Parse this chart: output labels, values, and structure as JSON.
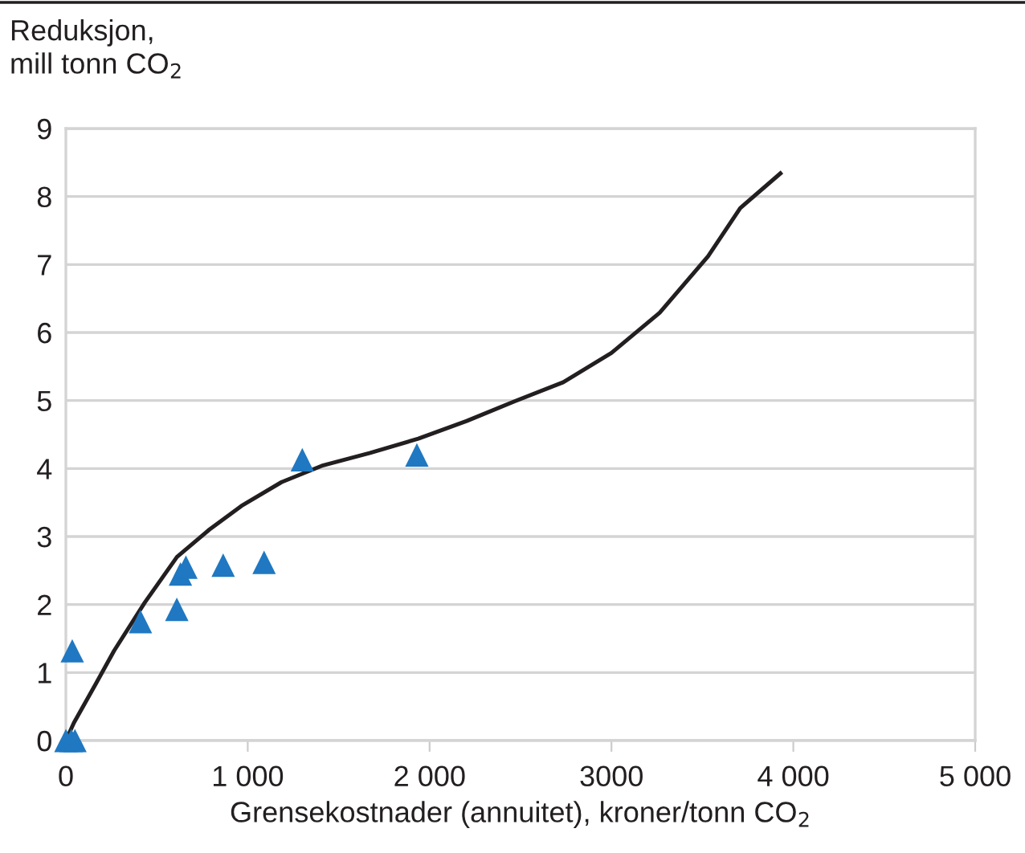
{
  "chart_data": {
    "type": "scatter",
    "xlabel": "Grensekostnader (annuitet), kroner/tonn CO$_{2}$",
    "ylabel": "Reduksjon,\nmill tonn CO$_{2}$",
    "series": [
      {
        "color": "#1f78c1",
        "marker": "triangle",
        "x": [
          0,
          30,
          50,
          35,
          410,
          610,
          630,
          660,
          865,
          1090,
          1300,
          1930
        ],
        "values": [
          0,
          0,
          0,
          1.32,
          1.75,
          1.93,
          2.45,
          2.55,
          2.58,
          2.62,
          4.13,
          4.2
        ]
      },
      {
        "type": "line",
        "color": "#231f20",
        "marker": "none",
        "line_style": "solid",
        "x": [
          0,
          44,
          168,
          265,
          434,
          611,
          788,
          965,
          1186,
          1407,
          1673,
          1938,
          2204,
          2469,
          2735,
          3000,
          3265,
          3531,
          3708,
          3929
        ],
        "values": [
          0,
          0.26,
          0.85,
          1.32,
          2.03,
          2.7,
          3.1,
          3.45,
          3.8,
          4.04,
          4.23,
          4.44,
          4.7,
          4.99,
          5.27,
          5.7,
          6.29,
          7.12,
          7.83,
          8.34
        ]
      }
    ],
    "xlim": [
      0,
      5000
    ],
    "ylim": [
      0,
      9
    ],
    "xticks": [
      0,
      {
        "value": 1000,
        "label": "1 000"
      },
      {
        "value": 2000,
        "label": "2 000"
      },
      3000,
      {
        "value": 4000,
        "label": "4 000"
      },
      {
        "value": 5000,
        "label": "5 000"
      }
    ],
    "yticks": [
      0,
      1,
      2,
      3,
      4,
      5,
      6,
      7,
      8,
      9
    ],
    "grid": "y",
    "legend": false
  }
}
